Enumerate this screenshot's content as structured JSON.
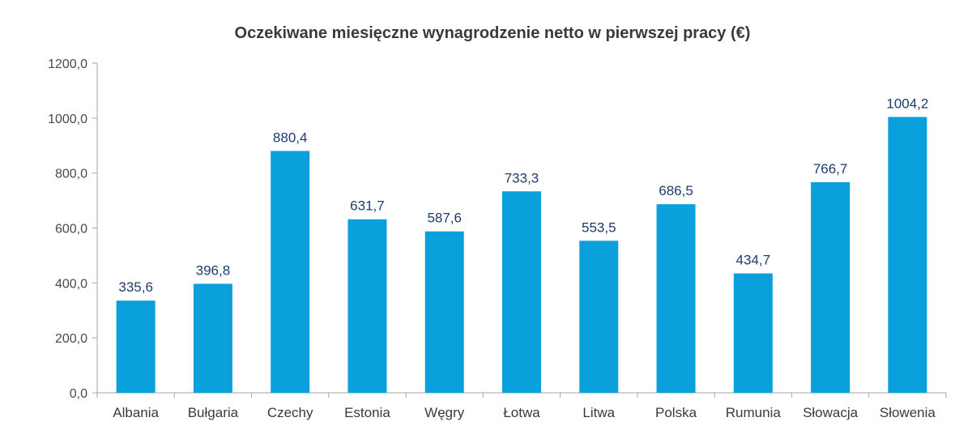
{
  "chart_data": {
    "type": "bar",
    "title": "Oczekiwane miesięczne wynagrodzenie netto w pierwszej pracy (€)",
    "xlabel": "",
    "ylabel": "",
    "categories": [
      "Albania",
      "Bułgaria",
      "Czechy",
      "Estonia",
      "Węgry",
      "Łotwa",
      "Litwa",
      "Polska",
      "Rumunia",
      "Słowacja",
      "Słowenia"
    ],
    "values": [
      335.6,
      396.8,
      880.4,
      631.7,
      587.6,
      733.3,
      553.5,
      686.5,
      434.7,
      766.7,
      1004.2
    ],
    "value_labels": [
      "335,6",
      "396,8",
      "880,4",
      "631,7",
      "587,6",
      "733,3",
      "553,5",
      "686,5",
      "434,7",
      "766,7",
      "1004,2"
    ],
    "ylim": [
      0,
      1200
    ],
    "yticks": [
      0,
      200,
      400,
      600,
      800,
      1000,
      1200
    ],
    "ytick_labels": [
      "0,0",
      "200,0",
      "400,0",
      "600,0",
      "800,0",
      "1000,0",
      "1200,0"
    ],
    "grid": false,
    "legend": "none",
    "bar_color": "#0aa0dc",
    "label_color": "#1f3b6e"
  }
}
